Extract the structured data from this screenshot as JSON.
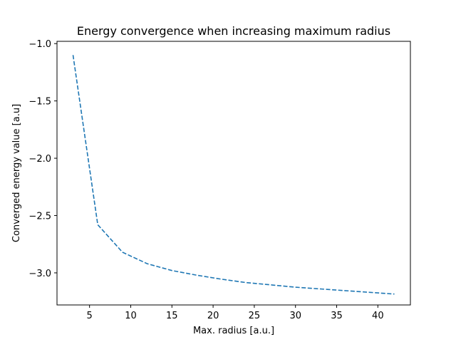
{
  "chart_data": {
    "type": "line",
    "title": "Energy convergence when increasing maximum radius",
    "xlabel": "Max. radius [a.u.]",
    "ylabel": "Converged energy value [a.u]",
    "xlim": [
      1.05,
      43.95
    ],
    "ylim": [
      -3.28,
      -0.98
    ],
    "xticks": [
      5,
      10,
      15,
      20,
      25,
      30,
      35,
      40
    ],
    "yticks": [
      -1.0,
      -1.5,
      -2.0,
      -2.5,
      -3.0
    ],
    "xtick_labels": [
      "5",
      "10",
      "15",
      "20",
      "25",
      "30",
      "35",
      "40"
    ],
    "ytick_labels": [
      "−1.0",
      "−1.5",
      "−2.0",
      "−2.5",
      "−3.0"
    ],
    "grid": false,
    "series": [
      {
        "color": "#1f77b4",
        "line_style": "dashed",
        "x": [
          3,
          6,
          9,
          12,
          15,
          18,
          21,
          24,
          27,
          30,
          33,
          36,
          39,
          42
        ],
        "y": [
          -1.1,
          -2.58,
          -2.82,
          -2.92,
          -2.98,
          -3.02,
          -3.055,
          -3.085,
          -3.105,
          -3.125,
          -3.14,
          -3.155,
          -3.17,
          -3.185
        ]
      }
    ]
  }
}
